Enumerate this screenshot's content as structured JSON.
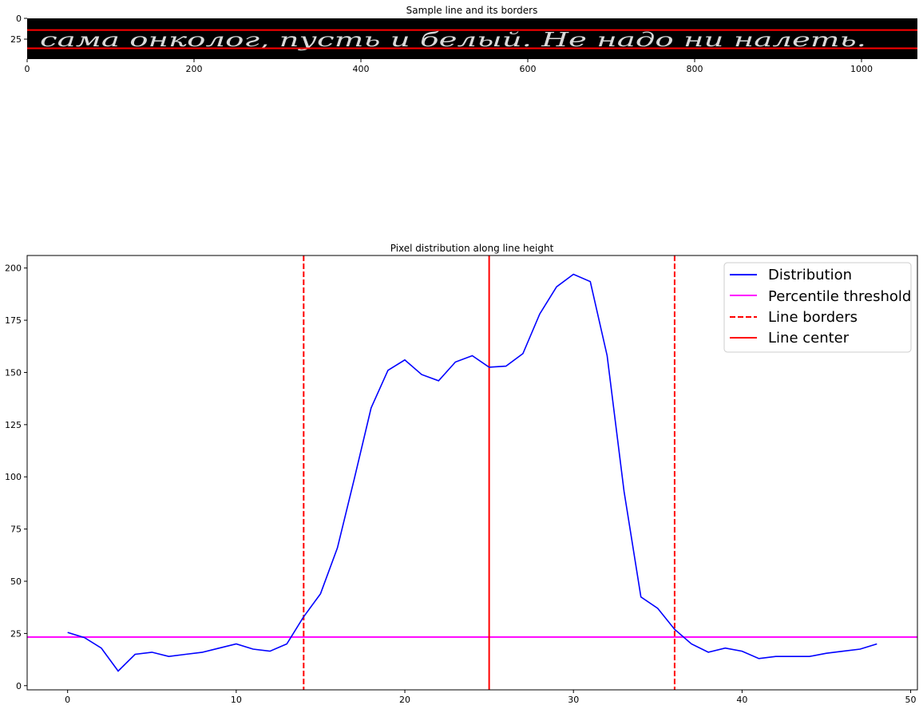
{
  "chart_data": [
    {
      "type": "image",
      "title": "Sample line and its borders",
      "handwritten_text": "сама онколог, пусть и белый. Не надо ни налеть.",
      "xlim": [
        0,
        1067
      ],
      "ylim": [
        49,
        0
      ],
      "xticks": [
        0,
        200,
        400,
        600,
        800,
        1000
      ],
      "yticks": [
        0,
        25
      ],
      "border_lines_y": [
        14,
        36
      ],
      "border_color": "#ff0000",
      "background": "#000000"
    },
    {
      "type": "line",
      "title": "Pixel distribution along line height",
      "xlim": [
        -2.4,
        50.4
      ],
      "ylim": [
        -2,
        206
      ],
      "xticks": [
        0,
        10,
        20,
        30,
        40,
        50
      ],
      "yticks": [
        0,
        25,
        50,
        75,
        100,
        125,
        150,
        175,
        200
      ],
      "grid": false,
      "legend_position": "top-right",
      "series": [
        {
          "name": "Distribution",
          "color": "#0000ff",
          "x": [
            0,
            1,
            2,
            3,
            4,
            5,
            6,
            7,
            8,
            9,
            10,
            11,
            12,
            13,
            14,
            15,
            16,
            17,
            18,
            19,
            20,
            21,
            22,
            23,
            24,
            25,
            26,
            27,
            28,
            29,
            30,
            31,
            32,
            33,
            34,
            35,
            36,
            37,
            38,
            39,
            40,
            41,
            42,
            43,
            44,
            45,
            46,
            47,
            48
          ],
          "y": [
            25.5,
            23,
            18,
            7,
            15,
            16,
            14,
            15,
            16,
            18,
            20,
            17.5,
            16.5,
            20,
            33,
            44,
            66,
            99,
            133,
            151,
            156,
            149,
            146,
            155,
            158,
            152.5,
            153,
            159,
            178,
            191,
            197,
            193.5,
            158,
            93,
            42.5,
            37,
            27,
            20,
            16,
            18,
            16.5,
            13,
            14,
            14,
            14,
            15.5,
            16.5,
            17.5,
            20
          ]
        }
      ],
      "threshold": {
        "name": "Percentile threshold",
        "value": 23.3,
        "color": "#ff00ff"
      },
      "borders": {
        "name": "Line borders",
        "values": [
          14,
          36
        ],
        "color": "#ff0000"
      },
      "center": {
        "name": "Line center",
        "value": 25,
        "color": "#ff0000"
      }
    }
  ]
}
